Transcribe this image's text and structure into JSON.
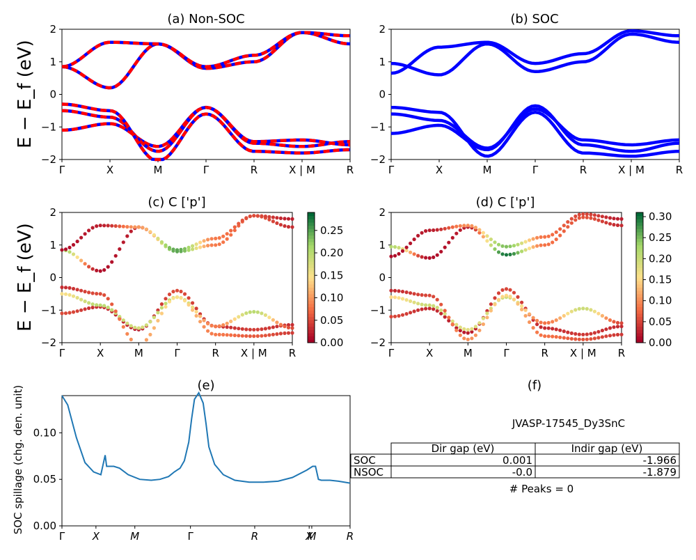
{
  "panels": {
    "a": {
      "title": "(a) Non-SOC",
      "ylabel": "E − E_f (eV)"
    },
    "b": {
      "title": "(b) SOC"
    },
    "c": {
      "title": "(c)  C ['p']",
      "ylabel": "E − E_f (eV)"
    },
    "d": {
      "title": "(d) C ['p']"
    },
    "e": {
      "title": "(e)",
      "ylabel": "SOC spillage (chg. den. unit)"
    },
    "f": {
      "title": "(f)"
    }
  },
  "band_axes": {
    "yticks": [
      "−2",
      "−1",
      "0",
      "1",
      "2"
    ],
    "ylim": [
      -2,
      2
    ],
    "kpoints": [
      "Γ",
      "X",
      "M",
      "Γ",
      "R",
      "X | M",
      "R"
    ]
  },
  "colorbars": {
    "c": {
      "ticks": [
        "0.00",
        "0.05",
        "0.10",
        "0.15",
        "0.20",
        "0.25"
      ],
      "max": 0.29
    },
    "d": {
      "ticks": [
        "0.00",
        "0.05",
        "0.10",
        "0.15",
        "0.20",
        "0.25",
        "0.30"
      ],
      "max": 0.31
    }
  },
  "spillage_axis": {
    "yticks": [
      "0.00",
      "0.05",
      "0.10"
    ],
    "kpoints": [
      "Γ",
      "X",
      "M",
      "Γ",
      "R",
      "X",
      "M",
      "R"
    ]
  },
  "summary": {
    "material": "JVASP-17545_Dy3SnC",
    "headers": [
      "Dir gap (eV)",
      "Indir gap (eV)"
    ],
    "rows": [
      {
        "label": "SOC",
        "dir": "0.001",
        "indir": "-1.966"
      },
      {
        "label": "NSOC",
        "dir": "-0.0",
        "indir": "-1.879"
      }
    ],
    "peaks": "# Peaks = 0"
  },
  "colors": {
    "nonsoc_solid": "#0000ff",
    "nonsoc_dash": "#ff0000",
    "soc": "#0000ff",
    "spillage": "#1f77b4"
  },
  "chart_data": [
    {
      "type": "line",
      "panel": "a",
      "ylim": [
        -2,
        2
      ],
      "kpath": [
        "Γ",
        "X",
        "M",
        "Γ",
        "R",
        "X | M",
        "R"
      ],
      "series": [
        {
          "values": [
            -1.1,
            -0.9,
            -1.6,
            -0.4,
            -1.5,
            -1.6,
            -1.45
          ]
        },
        {
          "values": [
            -0.5,
            -0.7,
            -1.75,
            -0.4,
            -1.45,
            -1.4,
            -1.55
          ]
        },
        {
          "values": [
            -0.3,
            -0.5,
            -2.05,
            -0.6,
            -1.75,
            -1.8,
            -1.7
          ]
        },
        {
          "values": [
            0.85,
            0.2,
            1.55,
            0.8,
            1.0,
            1.9,
            1.55
          ]
        },
        {
          "values": [
            0.85,
            1.6,
            1.55,
            0.85,
            1.2,
            1.9,
            1.8
          ]
        }
      ]
    },
    {
      "type": "line",
      "panel": "b",
      "ylim": [
        -2,
        2
      ],
      "kpath": [
        "Γ",
        "X",
        "M",
        "Γ",
        "R",
        "X | M",
        "R"
      ],
      "series": [
        {
          "values": [
            -1.2,
            -0.95,
            -1.7,
            -0.35,
            -1.55,
            -1.75,
            -1.5
          ]
        },
        {
          "values": [
            -0.6,
            -0.8,
            -1.65,
            -0.45,
            -1.4,
            -1.55,
            -1.4
          ]
        },
        {
          "values": [
            -0.4,
            -0.55,
            -1.9,
            -0.55,
            -1.8,
            -1.9,
            -1.75
          ]
        },
        {
          "values": [
            0.95,
            0.6,
            1.55,
            0.7,
            1.0,
            1.85,
            1.6
          ]
        },
        {
          "values": [
            0.65,
            1.45,
            1.6,
            0.95,
            1.25,
            1.95,
            1.8
          ]
        }
      ]
    },
    {
      "type": "scatter",
      "panel": "c",
      "colorbar_max": 0.29,
      "ylim": [
        -2,
        2
      ],
      "kpath": [
        "Γ",
        "X",
        "M",
        "Γ",
        "R",
        "X | M",
        "R"
      ],
      "series": [
        {
          "values": [
            -1.1,
            -0.9,
            -1.6,
            -0.4,
            -1.5,
            -1.6,
            -1.45
          ],
          "weights": [
            0.05,
            0.03,
            0.02,
            0.05,
            0.03,
            0.04,
            0.03
          ]
        },
        {
          "values": [
            -0.5,
            -0.85,
            -1.55,
            -0.6,
            -1.5,
            -1.05,
            -1.55
          ],
          "weights": [
            0.15,
            0.2,
            0.18,
            0.2,
            0.08,
            0.2,
            0.05
          ]
        },
        {
          "values": [
            -0.3,
            -0.5,
            -2.05,
            -0.6,
            -1.75,
            -1.8,
            -1.7
          ],
          "weights": [
            0.03,
            0.05,
            0.1,
            0.15,
            0.08,
            0.06,
            0.04
          ]
        },
        {
          "values": [
            0.85,
            0.2,
            1.55,
            0.8,
            1.0,
            1.9,
            1.55
          ],
          "weights": [
            0.22,
            0.01,
            0.02,
            0.25,
            0.08,
            0.06,
            0.03
          ]
        },
        {
          "values": [
            0.85,
            1.6,
            1.55,
            0.85,
            1.2,
            1.9,
            1.8
          ],
          "weights": [
            0.01,
            0.02,
            0.1,
            0.25,
            0.08,
            0.05,
            0.02
          ]
        }
      ]
    },
    {
      "type": "scatter",
      "panel": "d",
      "colorbar_max": 0.31,
      "ylim": [
        -2,
        2
      ],
      "kpath": [
        "Γ",
        "X",
        "M",
        "Γ",
        "R",
        "X | M",
        "R"
      ],
      "series": [
        {
          "values": [
            -1.2,
            -0.95,
            -1.7,
            -0.35,
            -1.55,
            -1.75,
            -1.5
          ],
          "weights": [
            0.05,
            0.03,
            0.02,
            0.05,
            0.03,
            0.04,
            0.03
          ]
        },
        {
          "values": [
            -0.6,
            -0.85,
            -1.6,
            -0.6,
            -1.4,
            -0.95,
            -1.4
          ],
          "weights": [
            0.15,
            0.2,
            0.18,
            0.2,
            0.08,
            0.2,
            0.05
          ]
        },
        {
          "values": [
            -0.4,
            -0.55,
            -1.9,
            -0.55,
            -1.8,
            -1.9,
            -1.75
          ],
          "weights": [
            0.03,
            0.05,
            0.1,
            0.15,
            0.08,
            0.06,
            0.04
          ]
        },
        {
          "values": [
            0.95,
            0.6,
            1.55,
            0.7,
            1.0,
            1.85,
            1.6
          ],
          "weights": [
            0.22,
            0.01,
            0.02,
            0.3,
            0.08,
            0.06,
            0.03
          ]
        },
        {
          "values": [
            0.65,
            1.45,
            1.6,
            0.95,
            1.25,
            1.95,
            1.8
          ],
          "weights": [
            0.01,
            0.02,
            0.1,
            0.25,
            0.08,
            0.05,
            0.02
          ]
        }
      ]
    },
    {
      "type": "line",
      "panel": "e",
      "ylim": [
        0.0,
        0.14
      ],
      "kpath": [
        "Γ",
        "X",
        "M",
        "Γ",
        "R",
        "X",
        "M",
        "R"
      ],
      "x": [
        0,
        0.02,
        0.05,
        0.08,
        0.11,
        0.135,
        0.15,
        0.155,
        0.165,
        0.18,
        0.2,
        0.23,
        0.27,
        0.31,
        0.34,
        0.37,
        0.39,
        0.41,
        0.425,
        0.44,
        0.45,
        0.46,
        0.475,
        0.49,
        0.5,
        0.51,
        0.53,
        0.56,
        0.6,
        0.65,
        0.7,
        0.75,
        0.8,
        0.85,
        0.87,
        0.88,
        0.89,
        0.9,
        0.93,
        0.96,
        1.0
      ],
      "y": [
        0.14,
        0.13,
        0.095,
        0.068,
        0.058,
        0.055,
        0.076,
        0.064,
        0.064,
        0.064,
        0.062,
        0.055,
        0.05,
        0.049,
        0.05,
        0.053,
        0.058,
        0.062,
        0.07,
        0.09,
        0.115,
        0.136,
        0.143,
        0.132,
        0.11,
        0.085,
        0.066,
        0.055,
        0.049,
        0.047,
        0.047,
        0.048,
        0.052,
        0.06,
        0.064,
        0.064,
        0.05,
        0.049,
        0.049,
        0.048,
        0.046
      ]
    }
  ]
}
